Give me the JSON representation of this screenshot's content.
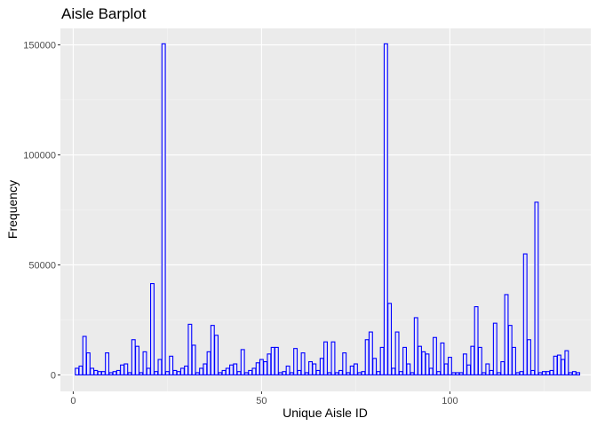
{
  "chart_data": {
    "type": "bar",
    "title": "Aisle Barplot",
    "xlabel": "Unique Aisle ID",
    "ylabel": "Frequency",
    "xlim": [
      -3.4,
      137.4
    ],
    "ylim": [
      -7500,
      157500
    ],
    "x_ticks": [
      0,
      50,
      100
    ],
    "y_ticks": [
      0,
      50000,
      100000,
      150000
    ],
    "x_tick_labels": [
      "0",
      "50",
      "100"
    ],
    "y_tick_labels": [
      "0",
      "50000",
      "100000",
      "150000"
    ],
    "bar_fill": "#e6e6fa",
    "bar_outline": "#0000ff",
    "panel_background": "#ebebeb",
    "grid": true,
    "x": [
      1,
      2,
      3,
      4,
      5,
      6,
      7,
      8,
      9,
      10,
      11,
      12,
      13,
      14,
      15,
      16,
      17,
      18,
      19,
      20,
      21,
      22,
      23,
      24,
      25,
      26,
      27,
      28,
      29,
      30,
      31,
      32,
      33,
      34,
      35,
      36,
      37,
      38,
      39,
      40,
      41,
      42,
      43,
      44,
      45,
      46,
      47,
      48,
      49,
      50,
      51,
      52,
      53,
      54,
      55,
      56,
      57,
      58,
      59,
      60,
      61,
      62,
      63,
      64,
      65,
      66,
      67,
      68,
      69,
      70,
      71,
      72,
      73,
      74,
      75,
      76,
      77,
      78,
      79,
      80,
      81,
      82,
      83,
      84,
      85,
      86,
      87,
      88,
      89,
      90,
      91,
      92,
      93,
      94,
      95,
      96,
      97,
      98,
      99,
      100,
      101,
      102,
      103,
      104,
      105,
      106,
      107,
      108,
      109,
      110,
      111,
      112,
      113,
      114,
      115,
      116,
      117,
      118,
      119,
      120,
      121,
      122,
      123,
      124,
      125,
      126,
      127,
      128,
      129,
      130,
      131,
      132,
      133,
      134
    ],
    "values": [
      3000,
      4000,
      17500,
      10000,
      3000,
      2000,
      1500,
      1500,
      10000,
      1000,
      1500,
      2000,
      4500,
      5000,
      1000,
      16000,
      13000,
      1000,
      10500,
      3000,
      41500,
      1500,
      7000,
      150500,
      1500,
      8500,
      2000,
      1500,
      3000,
      4000,
      23000,
      13500,
      1000,
      3000,
      5000,
      10500,
      22500,
      18000,
      1000,
      2000,
      3000,
      4500,
      5000,
      1500,
      11500,
      1000,
      2000,
      3000,
      5500,
      7000,
      6000,
      9500,
      12500,
      12500,
      1000,
      1500,
      4000,
      1000,
      12000,
      2000,
      10000,
      1000,
      6000,
      5000,
      2000,
      7500,
      15000,
      1000,
      15000,
      1000,
      2000,
      10000,
      1000,
      4000,
      5000,
      1000,
      1500,
      16000,
      19500,
      7500,
      1500,
      12500,
      150500,
      32500,
      3000,
      19500,
      1500,
      12500,
      5000,
      1000,
      26000,
      13000,
      10500,
      9500,
      3000,
      17000,
      1500,
      14500,
      5000,
      8000,
      1000,
      1000,
      1000,
      9500,
      4500,
      13000,
      31000,
      12500,
      1000,
      5000,
      2000,
      23500,
      1000,
      6000,
      36500,
      22500,
      12500,
      1000,
      1500,
      55000,
      16000,
      2000,
      78500,
      1000,
      1500,
      1500,
      2000,
      8500,
      9000,
      7000,
      11000,
      1000,
      1500,
      1000
    ]
  }
}
